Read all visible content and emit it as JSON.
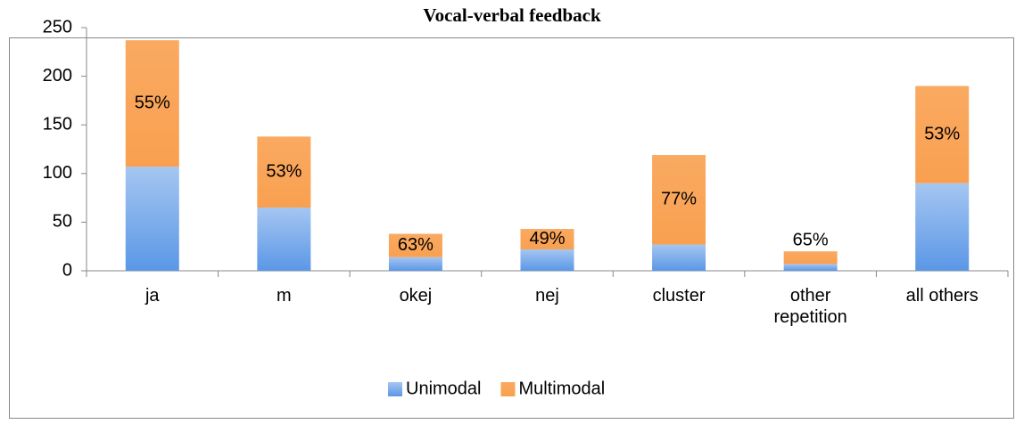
{
  "chart_data": {
    "type": "stacked-bar",
    "title": "Vocal-verbal feedback",
    "categories": [
      "ja",
      "m",
      "okej",
      "nej",
      "cluster",
      "other repetition",
      "all others"
    ],
    "series": [
      {
        "name": "Unimodal",
        "color": "#5b97e6",
        "values": [
          107,
          65,
          14,
          22,
          27,
          7,
          90
        ]
      },
      {
        "name": "Multimodal",
        "color": "#f9a050",
        "values": [
          130,
          73,
          24,
          21,
          92,
          13,
          100
        ]
      }
    ],
    "annotations": [
      "55%",
      "53%",
      "63%",
      "49%",
      "77%",
      "65%",
      "53%"
    ],
    "ylim": [
      0,
      250
    ],
    "yticks": [
      0,
      50,
      100,
      150,
      200,
      250
    ],
    "grid": false,
    "legend": "bottom"
  }
}
